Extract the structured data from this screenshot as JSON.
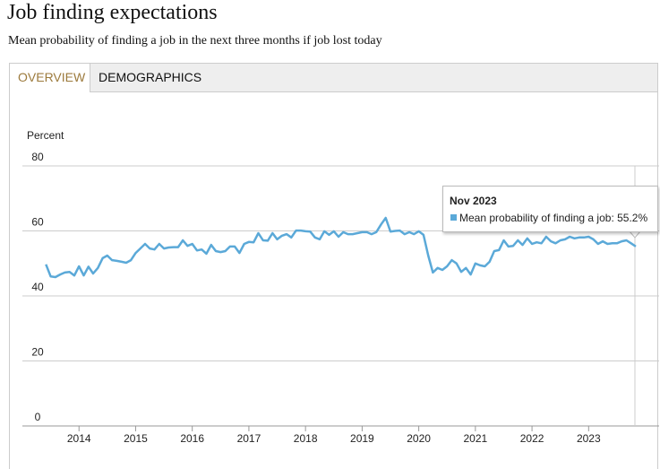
{
  "header": {
    "title": "Job finding expectations",
    "subtitle": "Mean probability of finding a job in the next three months if job lost today"
  },
  "tabs": [
    "OVERVIEW",
    "DEMOGRAPHICS"
  ],
  "chart_data": {
    "type": "line",
    "ylabel": "Percent",
    "color": "#5ba9d8",
    "x": [
      "2013-06",
      "2013-07",
      "2013-08",
      "2013-09",
      "2013-10",
      "2013-11",
      "2013-12",
      "2014-01",
      "2014-02",
      "2014-03",
      "2014-04",
      "2014-05",
      "2014-06",
      "2014-07",
      "2014-08",
      "2014-09",
      "2014-10",
      "2014-11",
      "2014-12",
      "2015-01",
      "2015-02",
      "2015-03",
      "2015-04",
      "2015-05",
      "2015-06",
      "2015-07",
      "2015-08",
      "2015-09",
      "2015-10",
      "2015-11",
      "2015-12",
      "2016-01",
      "2016-02",
      "2016-03",
      "2016-04",
      "2016-05",
      "2016-06",
      "2016-07",
      "2016-08",
      "2016-09",
      "2016-10",
      "2016-11",
      "2016-12",
      "2017-01",
      "2017-02",
      "2017-03",
      "2017-04",
      "2017-05",
      "2017-06",
      "2017-07",
      "2017-08",
      "2017-09",
      "2017-10",
      "2017-11",
      "2017-12",
      "2018-01",
      "2018-02",
      "2018-03",
      "2018-04",
      "2018-05",
      "2018-06",
      "2018-07",
      "2018-08",
      "2018-09",
      "2018-10",
      "2018-11",
      "2018-12",
      "2019-01",
      "2019-02",
      "2019-03",
      "2019-04",
      "2019-05",
      "2019-06",
      "2019-07",
      "2019-08",
      "2019-09",
      "2019-10",
      "2019-11",
      "2019-12",
      "2020-01",
      "2020-02",
      "2020-03",
      "2020-04",
      "2020-05",
      "2020-06",
      "2020-07",
      "2020-08",
      "2020-09",
      "2020-10",
      "2020-11",
      "2020-12",
      "2021-01",
      "2021-02",
      "2021-03",
      "2021-04",
      "2021-05",
      "2021-06",
      "2021-07",
      "2021-08",
      "2021-09",
      "2021-10",
      "2021-11",
      "2021-12",
      "2022-01",
      "2022-02",
      "2022-03",
      "2022-04",
      "2022-05",
      "2022-06",
      "2022-07",
      "2022-08",
      "2022-09",
      "2022-10",
      "2022-11",
      "2022-12",
      "2023-01",
      "2023-02",
      "2023-03",
      "2023-04",
      "2023-05",
      "2023-06",
      "2023-07",
      "2023-08",
      "2023-09",
      "2023-10",
      "2023-11"
    ],
    "values": [
      49.7,
      46,
      45.8,
      46.6,
      47.2,
      47.4,
      46.3,
      49.1,
      46.3,
      49,
      46.9,
      48.6,
      51.6,
      52.4,
      51,
      50.8,
      50.5,
      50.2,
      51,
      53.2,
      54.6,
      56,
      54.6,
      54.3,
      56,
      54.6,
      54.9,
      55,
      55,
      57.1,
      55.4,
      56,
      54,
      54.3,
      53,
      55.7,
      53.8,
      53.5,
      53.8,
      55.2,
      55.2,
      53.2,
      56,
      56.6,
      56.5,
      59.3,
      57.1,
      57,
      59.3,
      57.4,
      58.5,
      59,
      58,
      60.1,
      60.1,
      59.9,
      59.8,
      58,
      57.4,
      59.9,
      58.8,
      59.9,
      58.2,
      59.6,
      59,
      59,
      59.3,
      59.6,
      59.6,
      59,
      59.6,
      62,
      64,
      59.8,
      60,
      60.1,
      59,
      59.6,
      59,
      59.9,
      58.8,
      52.4,
      47.2,
      48.6,
      48,
      49.1,
      51,
      50,
      47.4,
      48.6,
      46.6,
      50,
      49.4,
      49.1,
      50.5,
      53.8,
      54.1,
      57.1,
      55.2,
      55.4,
      57.1,
      55.7,
      57.7,
      56,
      56.5,
      56.2,
      58.2,
      56.8,
      56.2,
      57.1,
      57.4,
      58.2,
      57.7,
      58,
      58,
      58.2,
      57.4,
      56,
      56.8,
      56,
      56.2,
      56.2,
      56.8,
      57.1,
      56.2,
      55.2
    ],
    "xlim": [
      "2013-01",
      "2023-11"
    ],
    "xticks": [
      {
        "value": "2014-01",
        "label": "2014"
      },
      {
        "value": "2015-01",
        "label": "2015"
      },
      {
        "value": "2016-01",
        "label": "2016"
      },
      {
        "value": "2017-01",
        "label": "2017"
      },
      {
        "value": "2018-01",
        "label": "2018"
      },
      {
        "value": "2019-01",
        "label": "2019"
      },
      {
        "value": "2020-01",
        "label": "2020"
      },
      {
        "value": "2021-01",
        "label": "2021"
      },
      {
        "value": "2022-01",
        "label": "2022"
      },
      {
        "value": "2023-01",
        "label": "2023"
      }
    ],
    "ylim": [
      0,
      80
    ],
    "yticks": [
      0,
      20,
      40,
      60,
      80
    ],
    "grid": true,
    "tooltip": {
      "date": "Nov 2023",
      "text": "Mean probability of finding a job: 55.2%"
    }
  }
}
